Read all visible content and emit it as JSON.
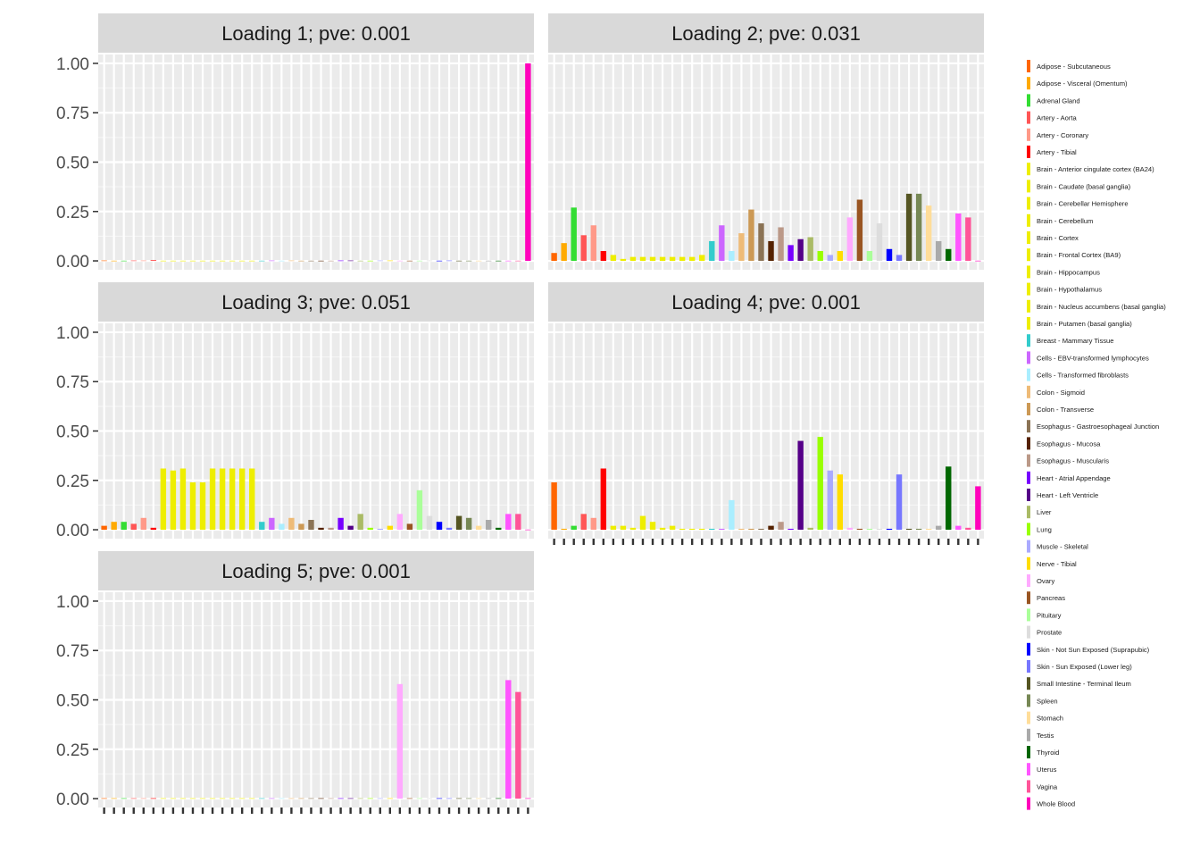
{
  "chart_data": {
    "type": "bar",
    "ylim": [
      0,
      1.0
    ],
    "yticks": [
      0.0,
      0.25,
      0.5,
      0.75,
      1.0
    ],
    "ytick_labels": [
      "0.00",
      "0.25",
      "0.50",
      "0.75",
      "1.00"
    ],
    "grid": true,
    "legend_position": "right",
    "categories": [
      "Adipose - Subcutaneous",
      "Adipose - Visceral (Omentum)",
      "Adrenal Gland",
      "Artery - Aorta",
      "Artery - Coronary",
      "Artery - Tibial",
      "Brain - Anterior cingulate cortex (BA24)",
      "Brain - Caudate (basal ganglia)",
      "Brain - Cerebellar Hemisphere",
      "Brain - Cerebellum",
      "Brain - Cortex",
      "Brain - Frontal Cortex (BA9)",
      "Brain - Hippocampus",
      "Brain - Hypothalamus",
      "Brain - Nucleus accumbens (basal ganglia)",
      "Brain - Putamen (basal ganglia)",
      "Breast - Mammary Tissue",
      "Cells - EBV-transformed lymphocytes",
      "Cells - Transformed fibroblasts",
      "Colon - Sigmoid",
      "Colon - Transverse",
      "Esophagus - Gastroesophageal Junction",
      "Esophagus - Mucosa",
      "Esophagus - Muscularis",
      "Heart - Atrial Appendage",
      "Heart - Left Ventricle",
      "Liver",
      "Lung",
      "Muscle - Skeletal",
      "Nerve - Tibial",
      "Ovary",
      "Pancreas",
      "Pituitary",
      "Prostate",
      "Skin - Not Sun Exposed (Suprapubic)",
      "Skin - Sun Exposed (Lower leg)",
      "Small Intestine - Terminal Ileum",
      "Spleen",
      "Stomach",
      "Testis",
      "Thyroid",
      "Uterus",
      "Vagina",
      "Whole Blood"
    ],
    "colors": [
      "#FF6600",
      "#FFAA00",
      "#33DD33",
      "#FF5555",
      "#FF9988",
      "#FF0000",
      "#EEEE00",
      "#EEEE00",
      "#EEEE00",
      "#EEEE00",
      "#EEEE00",
      "#EEEE00",
      "#EEEE00",
      "#EEEE00",
      "#EEEE00",
      "#EEEE00",
      "#33CCCC",
      "#CC66FF",
      "#AAEEFF",
      "#EEBB77",
      "#CC9955",
      "#8B7355",
      "#552200",
      "#BB9988",
      "#7700FF",
      "#550088",
      "#AABB66",
      "#99FF00",
      "#AAAAFF",
      "#FFDD00",
      "#FFAAFF",
      "#995522",
      "#AAFF99",
      "#DDDDDD",
      "#0000FF",
      "#7777FF",
      "#555522",
      "#778855",
      "#FFDD99",
      "#AAAAAA",
      "#006600",
      "#FF55FF",
      "#FF5599",
      "#FF00BB"
    ],
    "panels": [
      {
        "title": "Loading 1; pve: 0.001",
        "values": [
          0.002,
          0.001,
          0.001,
          0.002,
          0.002,
          0.003,
          0.001,
          0.001,
          0.001,
          0.001,
          0.001,
          0.001,
          0.001,
          0.001,
          0.001,
          0.001,
          0.001,
          0.002,
          0.001,
          0.002,
          0.001,
          0.001,
          0.001,
          0.001,
          0.002,
          0.002,
          0.001,
          0.001,
          0.002,
          0.002,
          0.001,
          0.001,
          0.001,
          0.002,
          0.001,
          0.002,
          0.001,
          0.001,
          0.001,
          0.001,
          0.001,
          0.001,
          0.001,
          1.0
        ]
      },
      {
        "title": "Loading 2; pve: 0.031",
        "values": [
          0.04,
          0.09,
          0.27,
          0.13,
          0.18,
          0.05,
          0.03,
          0.01,
          0.02,
          0.02,
          0.02,
          0.02,
          0.02,
          0.02,
          0.02,
          0.03,
          0.1,
          0.18,
          0.05,
          0.14,
          0.26,
          0.19,
          0.1,
          0.17,
          0.08,
          0.11,
          0.12,
          0.05,
          0.03,
          0.05,
          0.22,
          0.31,
          0.05,
          0.19,
          0.06,
          0.03,
          0.34,
          0.34,
          0.28,
          0.1,
          0.06,
          0.24,
          0.22,
          0.001
        ]
      },
      {
        "title": "Loading 3; pve: 0.051",
        "values": [
          0.02,
          0.04,
          0.04,
          0.03,
          0.06,
          0.01,
          0.31,
          0.3,
          0.31,
          0.24,
          0.24,
          0.31,
          0.31,
          0.31,
          0.31,
          0.31,
          0.04,
          0.06,
          0.03,
          0.06,
          0.03,
          0.05,
          0.01,
          0.01,
          0.06,
          0.02,
          0.08,
          0.01,
          0.005,
          0.02,
          0.08,
          0.03,
          0.2,
          0.07,
          0.04,
          0.01,
          0.07,
          0.06,
          0.02,
          0.05,
          0.01,
          0.08,
          0.08,
          0.001
        ]
      },
      {
        "title": "Loading 4; pve: 0.001",
        "values": [
          0.24,
          0.005,
          0.02,
          0.08,
          0.06,
          0.31,
          0.02,
          0.02,
          0.01,
          0.07,
          0.04,
          0.01,
          0.02,
          0.005,
          0.005,
          0.005,
          0.005,
          0.005,
          0.15,
          0.005,
          0.005,
          0.005,
          0.02,
          0.04,
          0.005,
          0.45,
          0.01,
          0.47,
          0.3,
          0.28,
          0.01,
          0.005,
          0.005,
          0.005,
          0.005,
          0.28,
          0.005,
          0.005,
          0.005,
          0.02,
          0.32,
          0.02,
          0.01,
          0.22
        ]
      },
      {
        "title": "Loading 5; pve: 0.001",
        "values": [
          0.002,
          0.002,
          0.002,
          0.002,
          0.002,
          0.002,
          0.002,
          0.002,
          0.002,
          0.002,
          0.002,
          0.002,
          0.002,
          0.002,
          0.002,
          0.002,
          0.002,
          0.002,
          0.002,
          0.002,
          0.002,
          0.002,
          0.002,
          0.002,
          0.002,
          0.002,
          0.002,
          0.002,
          0.002,
          0.002,
          0.58,
          0.002,
          0.002,
          0.002,
          0.002,
          0.002,
          0.002,
          0.002,
          0.002,
          0.002,
          0.002,
          0.6,
          0.54,
          0.002
        ]
      }
    ]
  }
}
